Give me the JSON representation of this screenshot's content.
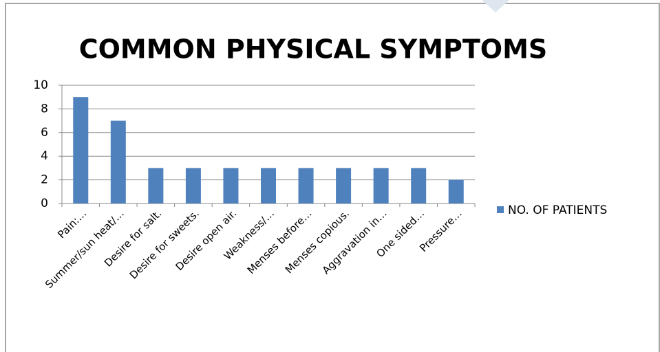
{
  "chart_data": {
    "type": "bar",
    "title": "COMMON PHYSICAL SYMPTOMS",
    "categories": [
      "Pain:…",
      "Summer/sun heat/…",
      "Desire for salt.",
      "Desire for sweets.",
      "Desire open air.",
      "Weakness/…",
      "Menses before…",
      "Menses copious.",
      "Aggravation in…",
      "One sided…",
      "Pressure…"
    ],
    "series": [
      {
        "name": "NO. OF PATIENTS",
        "color": "#4f81bd",
        "values": [
          9,
          7,
          3,
          3,
          3,
          3,
          3,
          3,
          3,
          3,
          2
        ]
      }
    ],
    "ylim": [
      0,
      10
    ],
    "yticks": [
      0,
      2,
      4,
      6,
      8,
      10
    ],
    "grid": true,
    "legend": "right"
  }
}
